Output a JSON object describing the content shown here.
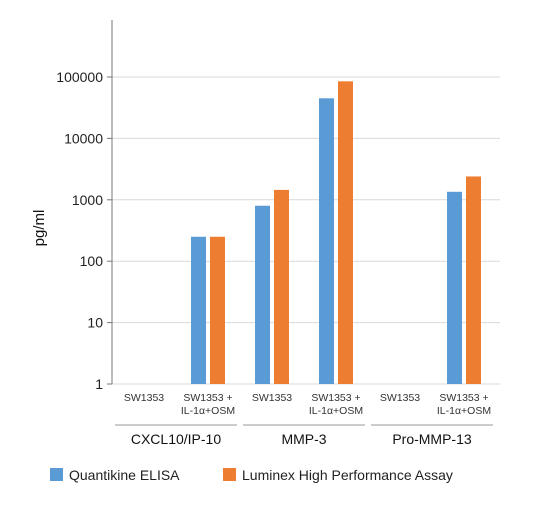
{
  "chart_data": {
    "type": "bar",
    "yscale": "log",
    "ylabel": "pg/ml",
    "ylim": [
      1,
      500000
    ],
    "y_ticks": [
      "1",
      "10",
      "100",
      "1000",
      "10000",
      "100000"
    ],
    "grid": true,
    "legend_position": "bottom",
    "categories": [
      [
        "SW1353"
      ],
      [
        "SW1353 +",
        "IL-1α+OSM"
      ],
      [
        "SW1353"
      ],
      [
        "SW1353 +",
        "IL-1α+OSM"
      ],
      [
        "SW1353"
      ],
      [
        "SW1353 +",
        "IL-1α+OSM"
      ]
    ],
    "groups": [
      "CXCL10/IP-10",
      "MMP-3",
      "Pro-MMP-13"
    ],
    "series": [
      {
        "name": "Quantikine ELISA",
        "color": "#5b9bd5",
        "values": [
          null,
          250,
          800,
          45000,
          null,
          1350
        ]
      },
      {
        "name": "Luminex High Performance Assay",
        "color": "#ed7d31",
        "values": [
          null,
          250,
          1450,
          85000,
          null,
          2400
        ]
      }
    ]
  }
}
